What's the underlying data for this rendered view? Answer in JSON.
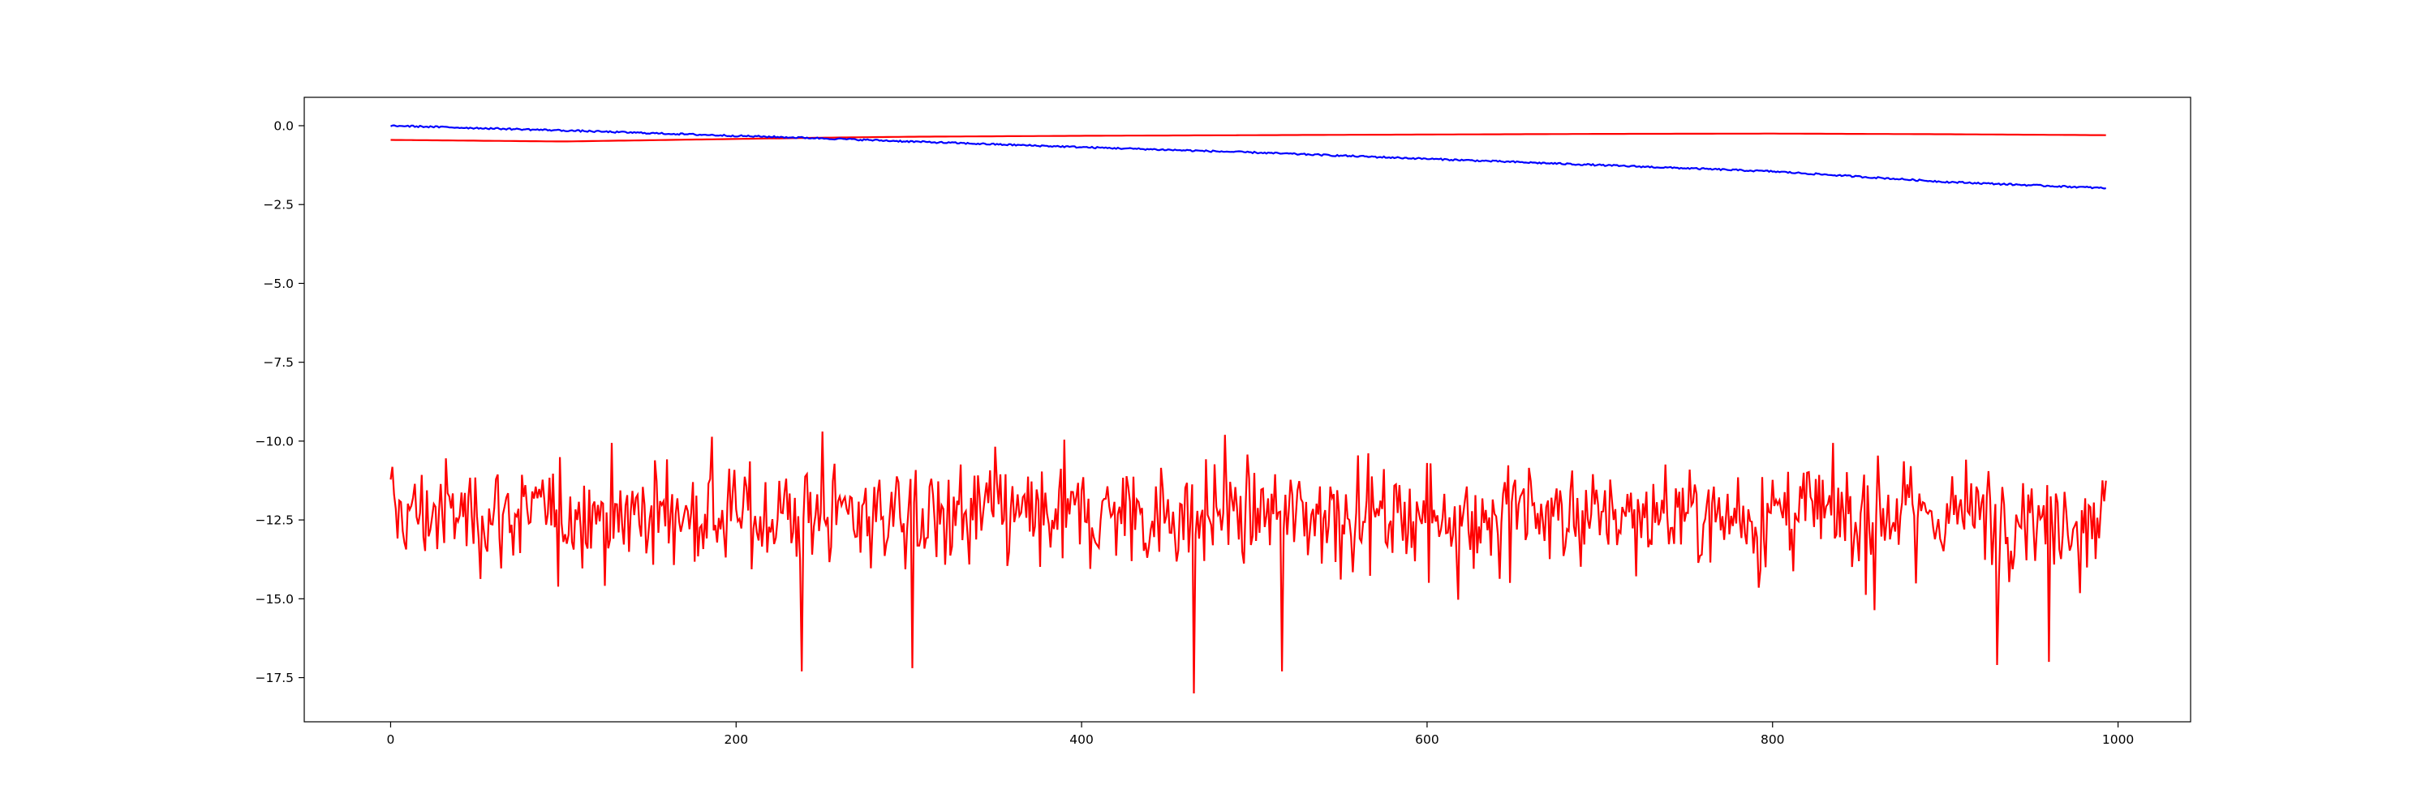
{
  "chart_data": {
    "type": "line",
    "title": "",
    "xlabel": "",
    "ylabel": "",
    "xlim": [
      -50,
      1042
    ],
    "ylim": [
      -18.9,
      0.9
    ],
    "x_ticks": [
      0,
      200,
      400,
      600,
      800,
      1000
    ],
    "x_tick_labels": [
      "0",
      "200",
      "400",
      "600",
      "800",
      "1000"
    ],
    "y_ticks": [
      0.0,
      -2.5,
      -5.0,
      -7.5,
      -10.0,
      -12.5,
      -15.0,
      -17.5
    ],
    "y_tick_labels": [
      "0.0",
      "−2.5",
      "−5.0",
      "−7.5",
      "−10.0",
      "−12.5",
      "−15.0",
      "−17.5"
    ],
    "grid": false,
    "legend": "none",
    "colors": {
      "series_1": "#0000ff",
      "series_2": "#ff0000",
      "series_3": "#ff0000"
    },
    "series": [
      {
        "color": "#0000ff",
        "description": "slow linear decline with small jitter",
        "x": [
          0,
          100,
          200,
          250,
          300,
          400,
          500,
          600,
          700,
          800,
          900,
          993
        ],
        "values": [
          0.0,
          -0.15,
          -0.32,
          -0.4,
          -0.5,
          -0.68,
          -0.85,
          -1.05,
          -1.25,
          -1.45,
          -1.78,
          -1.98
        ]
      },
      {
        "color": "#ff0000",
        "description": "smooth curve",
        "x": [
          0,
          100,
          200,
          250,
          300,
          400,
          500,
          600,
          700,
          800,
          900,
          993
        ],
        "values": [
          -0.45,
          -0.5,
          -0.42,
          -0.38,
          -0.35,
          -0.32,
          -0.3,
          -0.28,
          -0.26,
          -0.25,
          -0.27,
          -0.3
        ]
      },
      {
        "color": "#ff0000",
        "description": "noisy series fluctuating around -12.5",
        "x": [
          0,
          993
        ],
        "mean": -12.3,
        "range": [
          -18.0,
          -9.7
        ],
        "highlights": [
          {
            "x": 238,
            "y": -17.3
          },
          {
            "x": 250,
            "y": -9.7
          },
          {
            "x": 302,
            "y": -17.2
          },
          {
            "x": 465,
            "y": -18.0
          },
          {
            "x": 483,
            "y": -9.8
          },
          {
            "x": 516,
            "y": -17.3
          },
          {
            "x": 930,
            "y": -17.1
          },
          {
            "x": 960,
            "y": -17.0
          }
        ]
      }
    ]
  }
}
